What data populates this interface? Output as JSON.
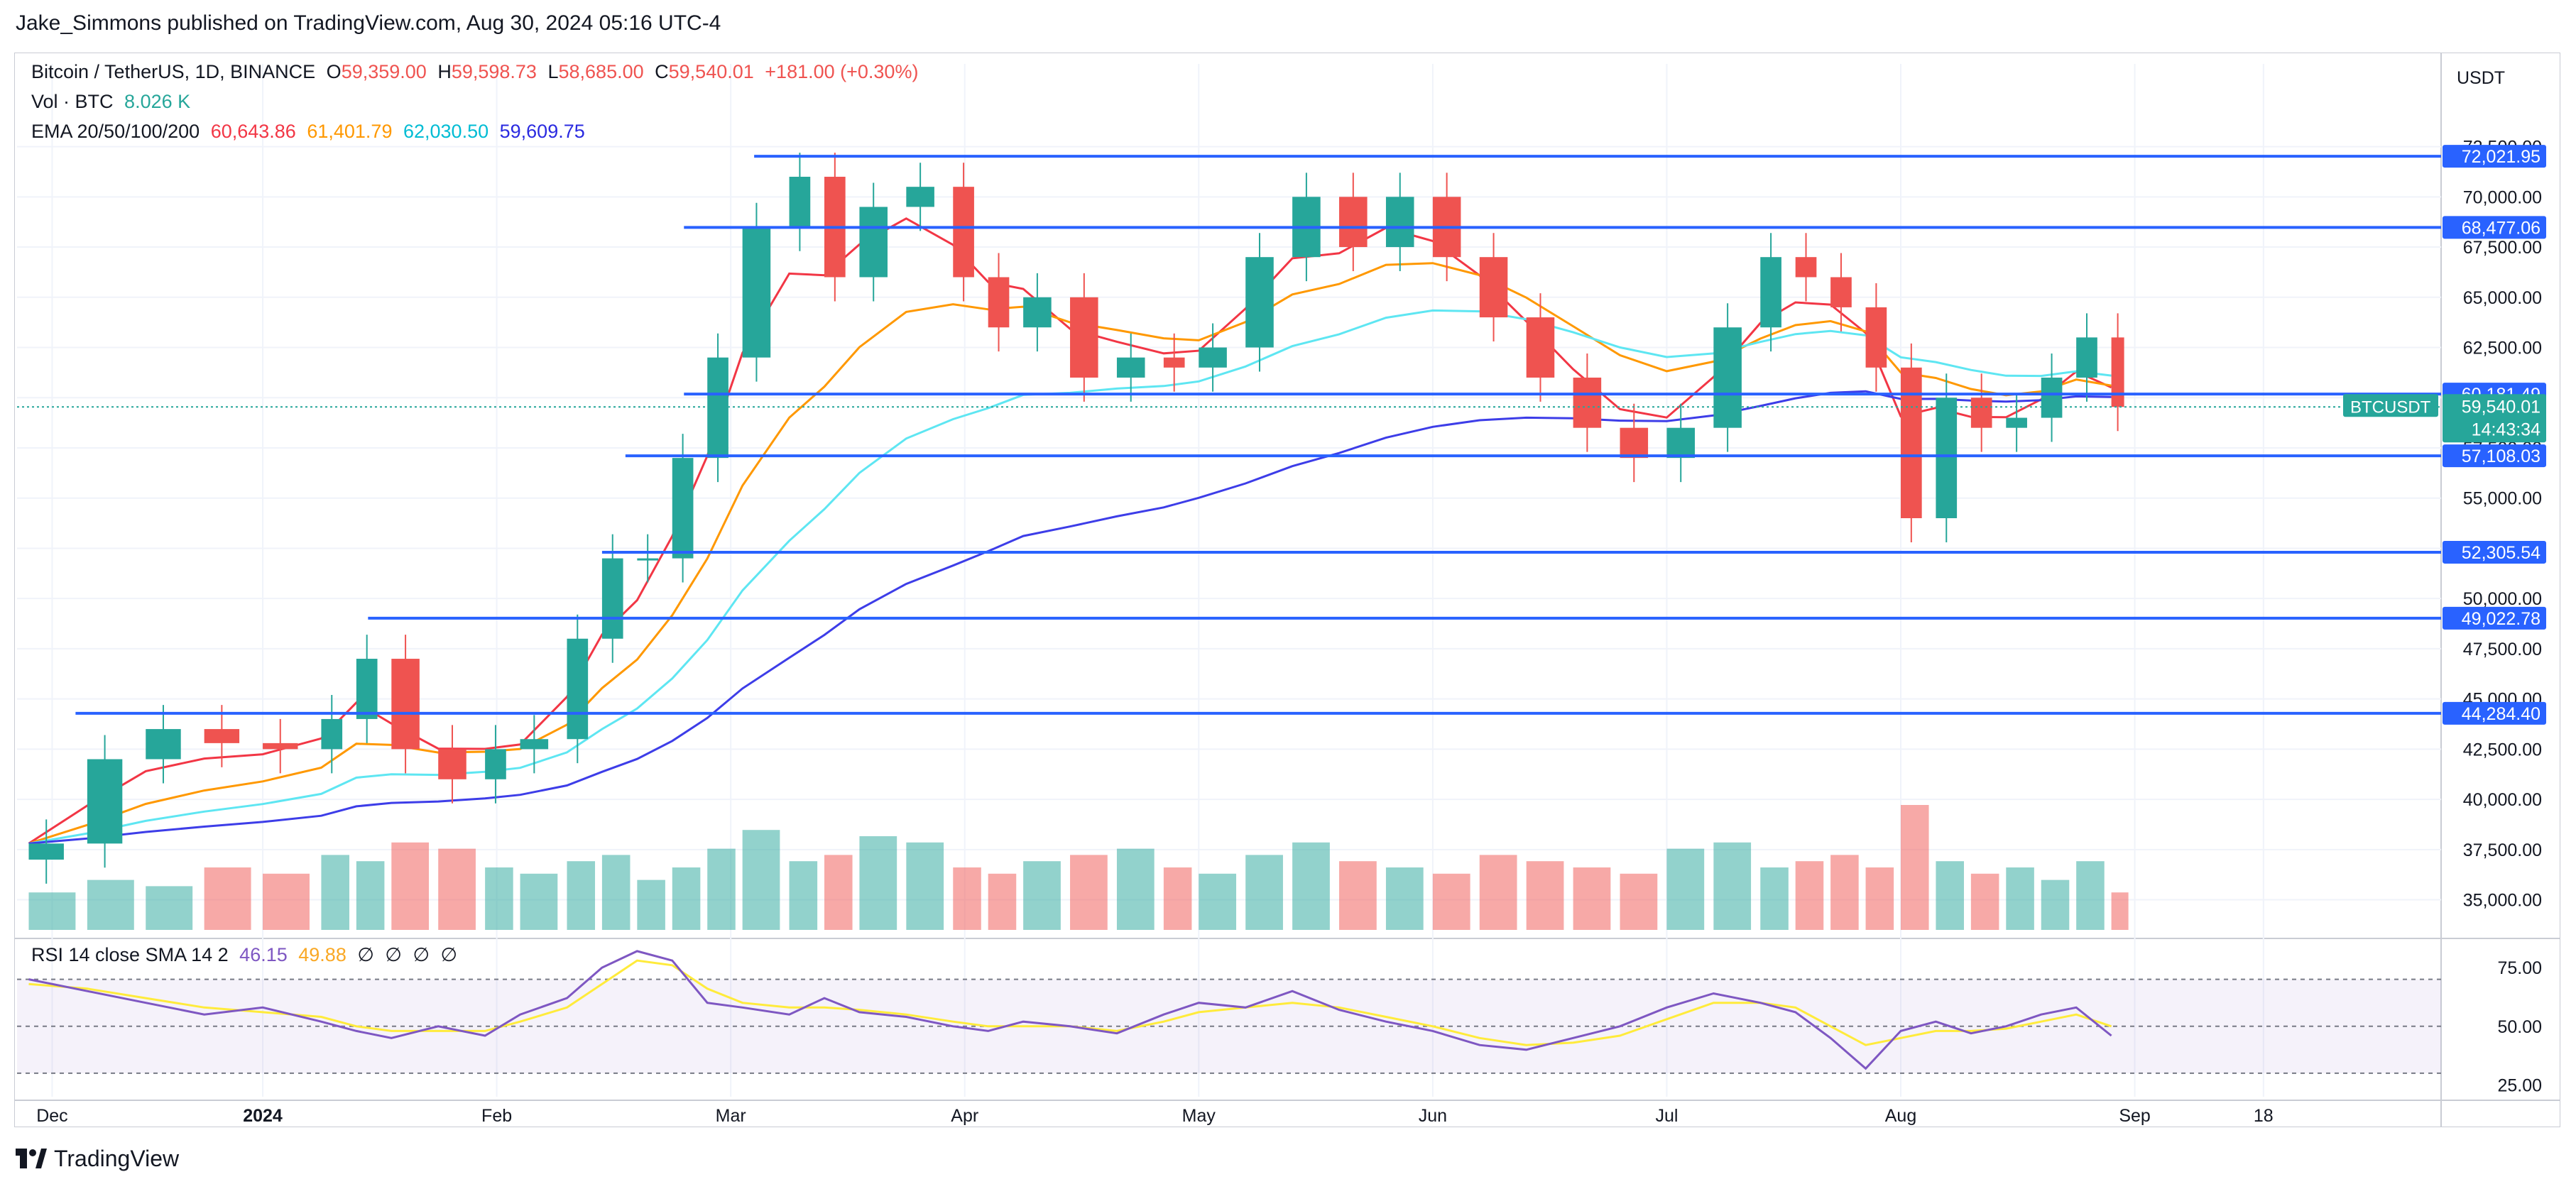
{
  "header": {
    "text": "Jake_Simmons published on TradingView.com, Aug 30, 2024 05:16 UTC-4"
  },
  "legend": {
    "symbol": "Bitcoin / TetherUS, 1D, BINANCE",
    "o_label": "O",
    "o_val": "59,359.00",
    "h_label": "H",
    "h_val": "59,598.73",
    "l_label": "L",
    "l_val": "58,685.00",
    "c_label": "C",
    "c_val": "59,540.01",
    "change": "+181.00 (+0.30%)",
    "vol_label": "Vol · BTC",
    "vol_val": "8.026 K",
    "ema_label": "EMA 20/50/100/200",
    "ema20": "60,643.86",
    "ema50": "61,401.79",
    "ema100": "62,030.50",
    "ema200": "59,609.75"
  },
  "rsi_legend": {
    "label": "RSI 14 close SMA 14 2",
    "rsi": "46.15",
    "sma": "49.88",
    "nulls": [
      "∅",
      "∅",
      "∅",
      "∅"
    ]
  },
  "axis": {
    "currency": "USDT",
    "price_ticks": [
      "72,500.00",
      "70,000.00",
      "67,500.00",
      "65,000.00",
      "62,500.00",
      "60,000.00",
      "57,500.00",
      "55,000.00",
      "52,500.00",
      "50,000.00",
      "47,500.00",
      "45,000.00",
      "42,500.00",
      "40,000.00",
      "37,500.00",
      "35,000.00"
    ],
    "rsi_ticks": [
      "75.00",
      "50.00",
      "25.00"
    ],
    "time_ticks": [
      "Dec",
      "2024",
      "Feb",
      "Mar",
      "Apr",
      "May",
      "Jun",
      "Jul",
      "Aug",
      "Sep",
      "18"
    ]
  },
  "symbol_tag": {
    "name": "BTCUSDT",
    "price": "59,540.01",
    "countdown": "14:43:34"
  },
  "footer": {
    "brand": "TradingView"
  },
  "colors": {
    "up": "#26a69a",
    "down": "#ef5350",
    "hline": "#2962ff",
    "ema20": "#f23645",
    "ema50": "#ff9800",
    "ema100": "#5ee6f2",
    "ema200": "#3d3de8",
    "rsi": "#7e57c2",
    "rsi_sma": "#ffeb3b"
  },
  "chart_data": {
    "type": "candlestick",
    "title": "Bitcoin / TetherUS, 1D, BINANCE",
    "price_range": [
      33500,
      74500
    ],
    "rsi_range": [
      20,
      85
    ],
    "horizontal_levels": [
      {
        "price": 72021.95,
        "label": "72,021.95",
        "from_month": 3.1
      },
      {
        "price": 68477.06,
        "label": "68,477.06",
        "from_month": 2.8
      },
      {
        "price": 60181.49,
        "label": "60,181.49",
        "from_month": 2.8
      },
      {
        "price": 57108.03,
        "label": "57,108.03",
        "from_month": 2.55
      },
      {
        "price": 52305.54,
        "label": "52,305.54",
        "from_month": 2.45
      },
      {
        "price": 49022.78,
        "label": "49,022.78",
        "from_month": 1.45
      },
      {
        "price": 44284.4,
        "label": "44,284.40",
        "from_month": 0.2
      }
    ],
    "closes_weekly": [
      {
        "month": 0.0,
        "close": 37800
      },
      {
        "month": 0.25,
        "close": 42000
      },
      {
        "month": 0.5,
        "close": 43500
      },
      {
        "month": 0.75,
        "close": 42800
      },
      {
        "month": 1.0,
        "close": 42500
      },
      {
        "month": 1.25,
        "close": 44000
      },
      {
        "month": 1.4,
        "close": 47000
      },
      {
        "month": 1.55,
        "close": 42500
      },
      {
        "month": 1.75,
        "close": 41000
      },
      {
        "month": 1.95,
        "close": 42500
      },
      {
        "month": 2.1,
        "close": 43000
      },
      {
        "month": 2.3,
        "close": 48000
      },
      {
        "month": 2.45,
        "close": 52000
      },
      {
        "month": 2.6,
        "close": 52000
      },
      {
        "month": 2.75,
        "close": 57000
      },
      {
        "month": 2.9,
        "close": 62000
      },
      {
        "month": 3.05,
        "close": 68500
      },
      {
        "month": 3.25,
        "close": 71000
      },
      {
        "month": 3.4,
        "close": 66000
      },
      {
        "month": 3.55,
        "close": 69500
      },
      {
        "month": 3.75,
        "close": 70500
      },
      {
        "month": 3.95,
        "close": 66000
      },
      {
        "month": 4.1,
        "close": 63500
      },
      {
        "month": 4.25,
        "close": 65000
      },
      {
        "month": 4.45,
        "close": 61000
      },
      {
        "month": 4.65,
        "close": 62000
      },
      {
        "month": 4.85,
        "close": 61500
      },
      {
        "month": 5.0,
        "close": 62500
      },
      {
        "month": 5.2,
        "close": 67000
      },
      {
        "month": 5.4,
        "close": 70000
      },
      {
        "month": 5.6,
        "close": 67500
      },
      {
        "month": 5.8,
        "close": 70000
      },
      {
        "month": 6.0,
        "close": 67000
      },
      {
        "month": 6.2,
        "close": 64000
      },
      {
        "month": 6.4,
        "close": 61000
      },
      {
        "month": 6.6,
        "close": 58500
      },
      {
        "month": 6.8,
        "close": 57000
      },
      {
        "month": 7.0,
        "close": 58500
      },
      {
        "month": 7.2,
        "close": 63500
      },
      {
        "month": 7.4,
        "close": 67000
      },
      {
        "month": 7.55,
        "close": 66000
      },
      {
        "month": 7.7,
        "close": 64500
      },
      {
        "month": 7.85,
        "close": 61500
      },
      {
        "month": 8.0,
        "close": 54000
      },
      {
        "month": 8.15,
        "close": 60000
      },
      {
        "month": 8.3,
        "close": 58500
      },
      {
        "month": 8.45,
        "close": 59000
      },
      {
        "month": 8.6,
        "close": 61000
      },
      {
        "month": 8.75,
        "close": 63000
      },
      {
        "month": 8.9,
        "close": 59540
      }
    ],
    "volume_relative": [
      0.3,
      0.4,
      0.35,
      0.5,
      0.45,
      0.6,
      0.55,
      0.7,
      0.65,
      0.5,
      0.45,
      0.55,
      0.6,
      0.4,
      0.5,
      0.65,
      0.8,
      0.55,
      0.6,
      0.75,
      0.7,
      0.5,
      0.45,
      0.55,
      0.6,
      0.65,
      0.5,
      0.45,
      0.6,
      0.7,
      0.55,
      0.5,
      0.45,
      0.6,
      0.55,
      0.5,
      0.45,
      0.65,
      0.7,
      0.5,
      0.55,
      0.6,
      0.5,
      1.0,
      0.55,
      0.45,
      0.5,
      0.4,
      0.55,
      0.3
    ],
    "rsi_values": [
      70,
      65,
      60,
      55,
      58,
      52,
      48,
      45,
      50,
      46,
      55,
      62,
      75,
      82,
      78,
      60,
      58,
      55,
      62,
      56,
      54,
      50,
      48,
      52,
      50,
      47,
      55,
      60,
      58,
      65,
      57,
      52,
      48,
      42,
      40,
      45,
      50,
      58,
      64,
      60,
      56,
      45,
      32,
      48,
      52,
      47,
      50,
      55,
      58,
      46
    ],
    "rsi_sma_values": [
      68,
      66,
      62,
      58,
      56,
      54,
      50,
      48,
      48,
      48,
      52,
      58,
      68,
      78,
      76,
      66,
      60,
      58,
      58,
      57,
      55,
      52,
      50,
      50,
      50,
      48,
      52,
      56,
      58,
      60,
      58,
      54,
      50,
      45,
      42,
      43,
      46,
      53,
      60,
      60,
      58,
      50,
      42,
      45,
      48,
      48,
      49,
      52,
      55,
      50
    ]
  }
}
